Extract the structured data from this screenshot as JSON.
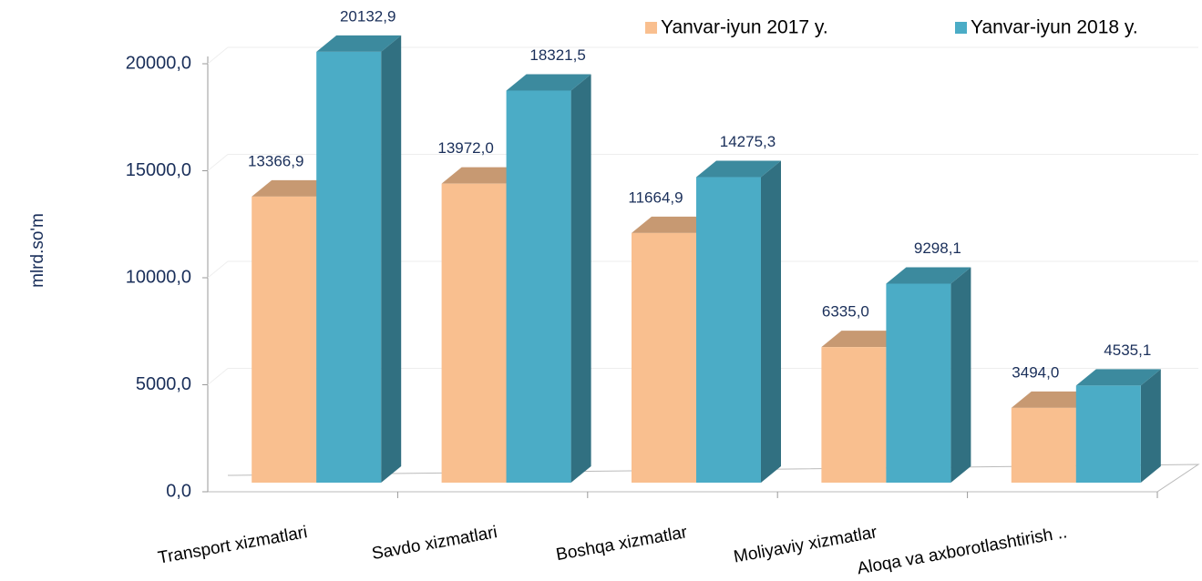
{
  "chart_data": {
    "type": "bar3d",
    "y_label": "mlrd.so'm",
    "categories": [
      "Transport xizmatlari",
      "Savdo xizmatlari",
      "Boshqa xizmatlar",
      "Moliyaviy xizmatlar",
      "Aloqa va axborotlashtirish .."
    ],
    "series": [
      {
        "name": "Yanvar-iyun 2017 y.",
        "color": "#F9BF8F",
        "values": [
          13366.9,
          13972.0,
          11664.9,
          6335.0,
          3494.0
        ],
        "value_labels": [
          "13366,9",
          "13972,0",
          "11664,9",
          "6335,0",
          "3494,0"
        ]
      },
      {
        "name": "Yanvar-iyun 2018 y.",
        "color": "#4BACC6",
        "values": [
          20132.9,
          18321.5,
          14275.3,
          9298.1,
          4535.1
        ],
        "value_labels": [
          "20132,9",
          "18321,5",
          "14275,3",
          "9298,1",
          "4535,1"
        ]
      }
    ],
    "ylim": [
      0,
      20000
    ],
    "yticks": [
      {
        "value": 0,
        "label": "0,0"
      },
      {
        "value": 5000,
        "label": "5000,0"
      },
      {
        "value": 10000,
        "label": "10000,0"
      },
      {
        "value": 15000,
        "label": "15000,0"
      },
      {
        "value": 20000,
        "label": "20000,0"
      }
    ],
    "grid": true,
    "legend": "top-right"
  }
}
